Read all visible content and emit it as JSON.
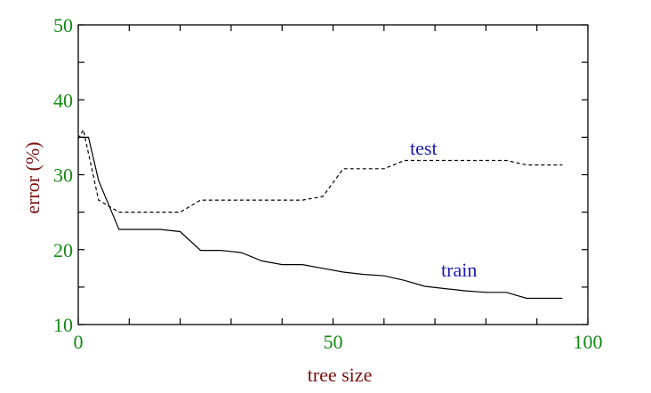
{
  "colors": {
    "tick_labels": "#138a13",
    "axis_titles": "#7a1010",
    "series_labels": "#1a1ab8",
    "lines": "#000000"
  },
  "chart_data": {
    "type": "line",
    "xlabel": "tree size",
    "ylabel": "error (%)",
    "xlim": [
      0,
      100
    ],
    "ylim": [
      10,
      50
    ],
    "xticks": [
      "0",
      "50",
      "100"
    ],
    "yticks": [
      "10",
      "20",
      "30",
      "40",
      "50"
    ],
    "grid": false,
    "series": [
      {
        "name": "test",
        "style": "dashed",
        "x": [
          0,
          1,
          4,
          8,
          12,
          16,
          20,
          24,
          28,
          32,
          36,
          40,
          44,
          48,
          52,
          56,
          60,
          64,
          68,
          72,
          76,
          80,
          84,
          88,
          92,
          95
        ],
        "y": [
          34.8,
          36.0,
          26.6,
          25.0,
          25.0,
          25.0,
          25.0,
          26.6,
          26.6,
          26.6,
          26.6,
          26.6,
          26.6,
          27.1,
          30.8,
          30.8,
          30.8,
          31.9,
          31.9,
          31.9,
          31.9,
          31.9,
          31.9,
          31.3,
          31.3,
          31.3
        ]
      },
      {
        "name": "train",
        "style": "solid",
        "x": [
          0,
          2,
          4,
          8,
          12,
          16,
          20,
          24,
          28,
          32,
          36,
          40,
          44,
          48,
          52,
          56,
          60,
          64,
          68,
          72,
          76,
          80,
          84,
          88,
          92,
          95
        ],
        "y": [
          35.0,
          35.0,
          29.2,
          22.7,
          22.7,
          22.7,
          22.4,
          19.9,
          19.9,
          19.6,
          18.5,
          18.0,
          18.0,
          17.5,
          17.0,
          16.7,
          16.5,
          15.9,
          15.1,
          14.8,
          14.5,
          14.3,
          14.3,
          13.5,
          13.5,
          13.5
        ]
      }
    ]
  }
}
